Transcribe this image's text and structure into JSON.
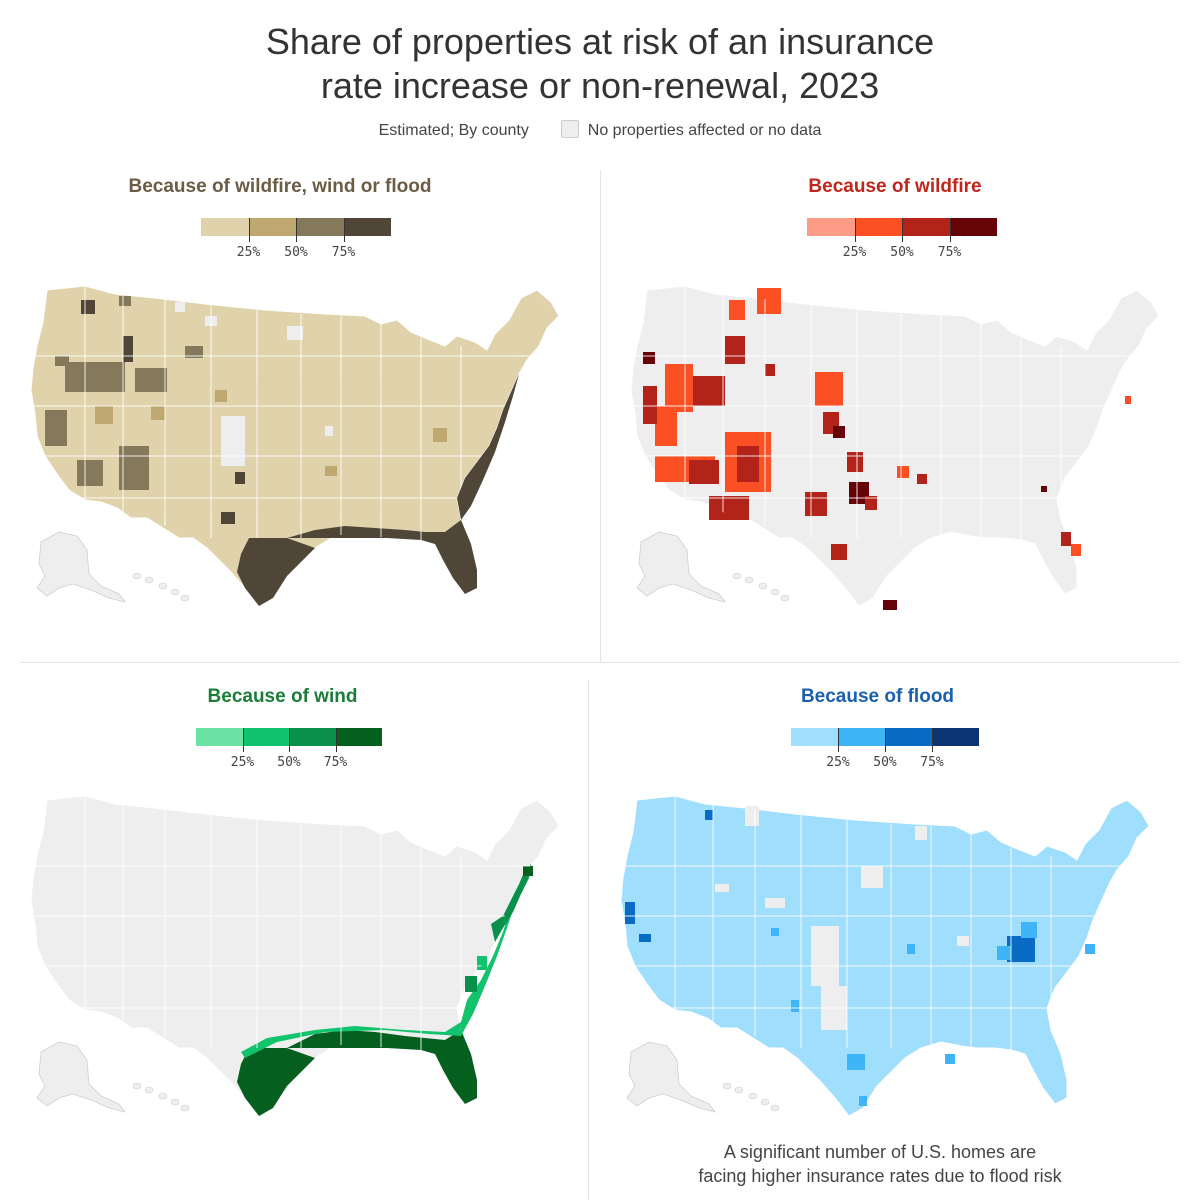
{
  "title": {
    "line1": "Share of properties at risk of an insurance",
    "line2": "rate increase or non-renewal, 2023"
  },
  "subtitle": "Estimated; By county",
  "nodata_label": "No properties affected or no data",
  "nodata_color": "#eeeeee",
  "legend_ticks": [
    "25%",
    "50%",
    "75%"
  ],
  "panels": [
    {
      "title": "Because of wildfire, wind or flood",
      "title_color": "#6b5d45",
      "scale": [
        "#e0d3ab",
        "#bfa86f",
        "#847a5b",
        "#4f4638"
      ],
      "highlights": [
        "Gulf Coast",
        "Florida",
        "Atlantic Coast",
        "Texas",
        "Southwest",
        "Northwest"
      ]
    },
    {
      "title": "Because of wildfire",
      "title_color": "#c0261b",
      "scale": [
        "#fc9b86",
        "#fa5024",
        "#b2231a",
        "#650306"
      ],
      "highlights": [
        "California",
        "Nevada",
        "Arizona",
        "Idaho",
        "Colorado",
        "New Mexico",
        "Texas",
        "Florida"
      ]
    },
    {
      "title": "Because of wind",
      "title_color": "#1b7d39",
      "scale": [
        "#6ae3a4",
        "#12c36e",
        "#09904a",
        "#05601f"
      ],
      "highlights": [
        "Gulf Coast",
        "Florida",
        "Atlantic Coast"
      ]
    },
    {
      "title": "Because of flood",
      "title_color": "#1b5fae",
      "scale": [
        "#9fdefc",
        "#3fb4f6",
        "#0a6bc5",
        "#0b3673"
      ],
      "highlights": [
        "Appalachia",
        "Gulf Coast",
        "California"
      ]
    }
  ],
  "caption": {
    "line1": "A significant number of U.S. homes are",
    "line2": "facing higher insurance rates due to flood risk"
  }
}
